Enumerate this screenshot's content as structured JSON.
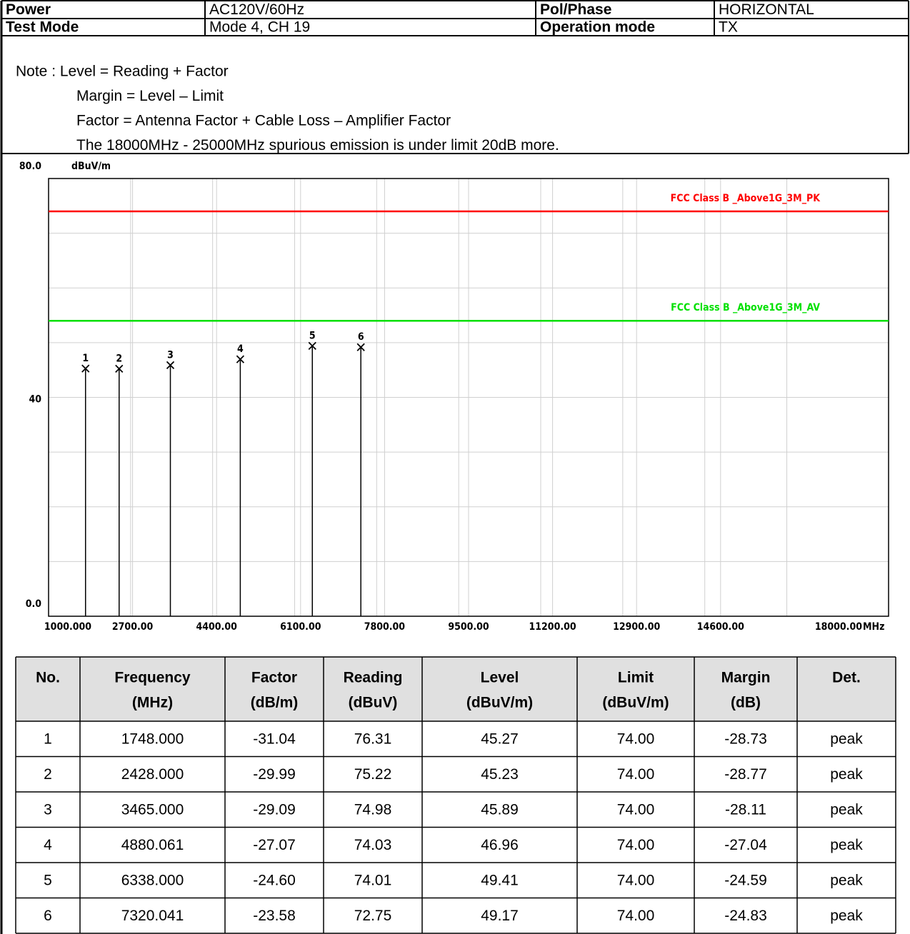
{
  "header": [
    [
      "Power",
      "AC120V/60Hz",
      "Pol/Phase",
      "HORIZONTAL"
    ],
    [
      "Test Mode",
      "Mode 4, CH 19",
      "Operation mode",
      "TX"
    ]
  ],
  "notes": [
    "Note : Level = Reading + Factor",
    "Margin = Level – Limit",
    "Factor = Antenna Factor + Cable Loss – Amplifier Factor",
    "The 18000MHz - 25000MHz spurious emission is under limit 20dB more."
  ],
  "chart_data": {
    "type": "stem",
    "y_unit": "dBuV/m",
    "x_unit": "MHz",
    "xlim": [
      1000,
      18000
    ],
    "ylim": [
      0,
      80
    ],
    "xticks": [
      {
        "value": 1000,
        "label": "1000.000"
      },
      {
        "value": 2700,
        "label": "2700.00"
      },
      {
        "value": 4400,
        "label": "4400.00"
      },
      {
        "value": 6100,
        "label": "6100.00"
      },
      {
        "value": 7800,
        "label": "7800.00"
      },
      {
        "value": 9500,
        "label": "9500.00"
      },
      {
        "value": 11200,
        "label": "11200.00"
      },
      {
        "value": 12900,
        "label": "12900.00"
      },
      {
        "value": 14600,
        "label": "14600.00"
      },
      {
        "value": 18000,
        "label": "18000.00"
      }
    ],
    "yticks": [
      {
        "value": 80,
        "label": "80.0"
      },
      40,
      {
        "value": 0,
        "label": "0.0"
      }
    ],
    "grid": true,
    "limits": [
      {
        "name": "FCC  Class B _Above1G_3M_PK",
        "value": 74,
        "color": "#ff0000"
      },
      {
        "name": "FCC  Class B _Above1G_3M_AV",
        "value": 54,
        "color": "#00e000"
      }
    ],
    "x": [
      1748,
      2428,
      3465,
      4880.061,
      6338,
      7320.041
    ],
    "values": [
      45.27,
      45.23,
      45.89,
      46.96,
      49.41,
      49.17
    ],
    "point_labels": [
      "1",
      "2",
      "3",
      "4",
      "5",
      "6"
    ],
    "color": "#000000"
  },
  "table": {
    "columns": [
      [
        "No."
      ],
      [
        "Frequency",
        "(MHz)"
      ],
      [
        "Factor",
        "(dB/m)"
      ],
      [
        "Reading",
        "(dBuV)"
      ],
      [
        "Level",
        "(dBuV/m)"
      ],
      [
        "Limit",
        "(dBuV/m)"
      ],
      [
        "Margin",
        "(dB)"
      ],
      [
        "Det."
      ]
    ],
    "rows": [
      [
        "1",
        "1748.000",
        "-31.04",
        "76.31",
        "45.27",
        "74.00",
        "-28.73",
        "peak"
      ],
      [
        "2",
        "2428.000",
        "-29.99",
        "75.22",
        "45.23",
        "74.00",
        "-28.77",
        "peak"
      ],
      [
        "3",
        "3465.000",
        "-29.09",
        "74.98",
        "45.89",
        "74.00",
        "-28.11",
        "peak"
      ],
      [
        "4",
        "4880.061",
        "-27.07",
        "74.03",
        "46.96",
        "74.00",
        "-27.04",
        "peak"
      ],
      [
        "5",
        "6338.000",
        "-24.60",
        "74.01",
        "49.41",
        "74.00",
        "-24.59",
        "peak"
      ],
      [
        "6",
        "7320.041",
        "-23.58",
        "72.75",
        "49.17",
        "74.00",
        "-24.83",
        "peak"
      ]
    ]
  }
}
